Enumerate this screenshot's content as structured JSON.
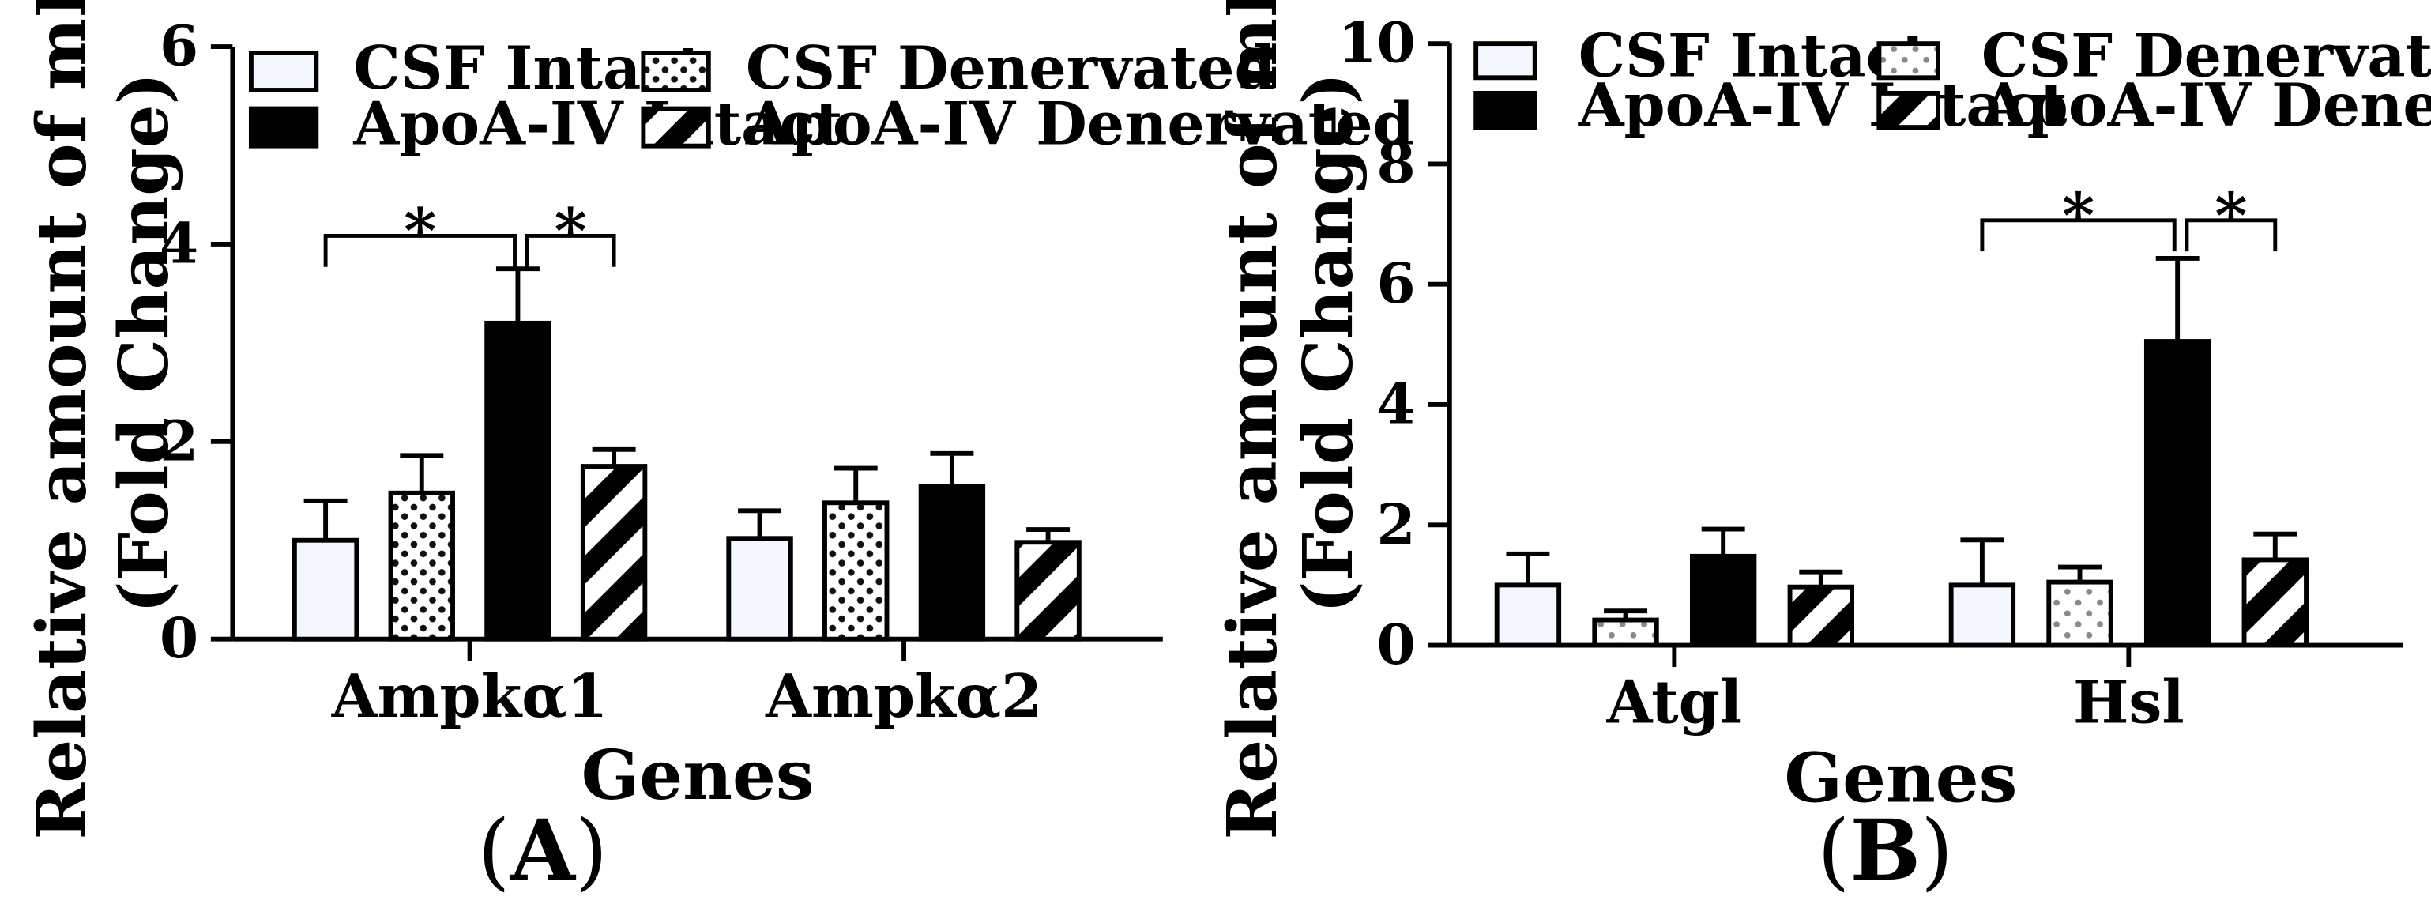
{
  "chart_data": [
    {
      "type": "bar",
      "panel_label": "A",
      "title": "",
      "xlabel": "Genes",
      "ylabel_line1": "Relative amount of mRNA",
      "ylabel_line2": "(Fold Change)",
      "ylim": [
        0,
        6
      ],
      "yticks": [
        0,
        2,
        4,
        6
      ],
      "categories": [
        "Ampkα1",
        "Ampkα2"
      ],
      "series": [
        {
          "name": "CSF Intact",
          "pattern": "plain",
          "values": [
            1.0,
            1.02
          ],
          "errors": [
            0.4,
            0.28
          ]
        },
        {
          "name": "CSF Denervated",
          "pattern": "dots",
          "values": [
            1.48,
            1.38
          ],
          "errors": [
            0.38,
            0.35
          ]
        },
        {
          "name": "ApoA-IV Intact",
          "pattern": "solid",
          "values": [
            3.2,
            1.55
          ],
          "errors": [
            0.55,
            0.33
          ]
        },
        {
          "name": "ApoA-IV Denervated",
          "pattern": "stripes",
          "values": [
            1.75,
            0.98
          ],
          "errors": [
            0.17,
            0.13
          ]
        }
      ],
      "significance": [
        {
          "category": 0,
          "from_series": 0,
          "to_series": 2,
          "label": "*"
        },
        {
          "category": 0,
          "from_series": 2,
          "to_series": 3,
          "label": "*"
        }
      ],
      "legend_position": "top"
    },
    {
      "type": "bar",
      "panel_label": "B",
      "title": "",
      "xlabel": "Genes",
      "ylabel_line1": "Relative amount of mRNA",
      "ylabel_line2": "(Fold Change)",
      "ylim": [
        0,
        10
      ],
      "yticks": [
        0,
        2,
        4,
        6,
        8,
        10
      ],
      "categories": [
        "Atgl",
        "Hsl"
      ],
      "series": [
        {
          "name": "CSF Intact",
          "pattern": "plain",
          "values": [
            1.0,
            1.0
          ],
          "errors": [
            0.52,
            0.75
          ]
        },
        {
          "name": "CSF Denervated",
          "pattern": "dots-light",
          "values": [
            0.42,
            1.05
          ],
          "errors": [
            0.15,
            0.25
          ]
        },
        {
          "name": "ApoA-IV Intact",
          "pattern": "solid",
          "values": [
            1.48,
            5.05
          ],
          "errors": [
            0.45,
            1.38
          ]
        },
        {
          "name": "ApoA-IV Denervated",
          "pattern": "stripes",
          "values": [
            0.97,
            1.42
          ],
          "errors": [
            0.25,
            0.43
          ]
        }
      ],
      "significance": [
        {
          "category": 1,
          "from_series": 0,
          "to_series": 2,
          "label": "*"
        },
        {
          "category": 1,
          "from_series": 2,
          "to_series": 3,
          "label": "*"
        }
      ],
      "legend_position": "top"
    }
  ]
}
